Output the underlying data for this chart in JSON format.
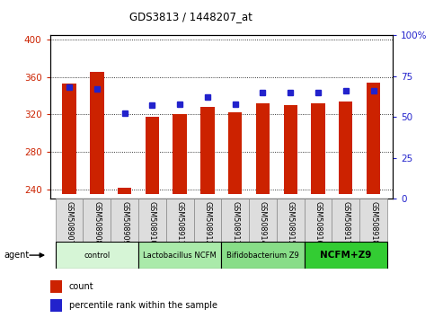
{
  "title": "GDS3813 / 1448207_at",
  "samples": [
    "GSM508907",
    "GSM508908",
    "GSM508909",
    "GSM508910",
    "GSM508911",
    "GSM508912",
    "GSM508913",
    "GSM508914",
    "GSM508915",
    "GSM508916",
    "GSM508917",
    "GSM508918"
  ],
  "counts": [
    353,
    366,
    242,
    318,
    320,
    328,
    322,
    332,
    330,
    332,
    334,
    354
  ],
  "percentiles": [
    68,
    67,
    52,
    57,
    58,
    62,
    58,
    65,
    65,
    65,
    66,
    66
  ],
  "ylim_left": [
    230,
    405
  ],
  "ylim_right": [
    0,
    100
  ],
  "yticks_left": [
    240,
    280,
    320,
    360,
    400
  ],
  "yticks_right": [
    0,
    25,
    50,
    75,
    100
  ],
  "bar_color": "#cc2200",
  "dot_color": "#2222cc",
  "bar_bottom": 235,
  "groups": [
    {
      "label": "control",
      "start": 0,
      "end": 3,
      "color": "#d6f5d6"
    },
    {
      "label": "Lactobacillus NCFM",
      "start": 3,
      "end": 6,
      "color": "#aaeaaa"
    },
    {
      "label": "Bifidobacterium Z9",
      "start": 6,
      "end": 9,
      "color": "#88dd88"
    },
    {
      "label": "NCFM+Z9",
      "start": 9,
      "end": 12,
      "color": "#33cc33"
    }
  ],
  "agent_label": "agent",
  "legend_count_label": "count",
  "legend_pct_label": "percentile rank within the sample",
  "tick_color_left": "#cc2200",
  "tick_color_right": "#2222cc",
  "xtick_bg": "#dddddd",
  "group_border": "#000000"
}
